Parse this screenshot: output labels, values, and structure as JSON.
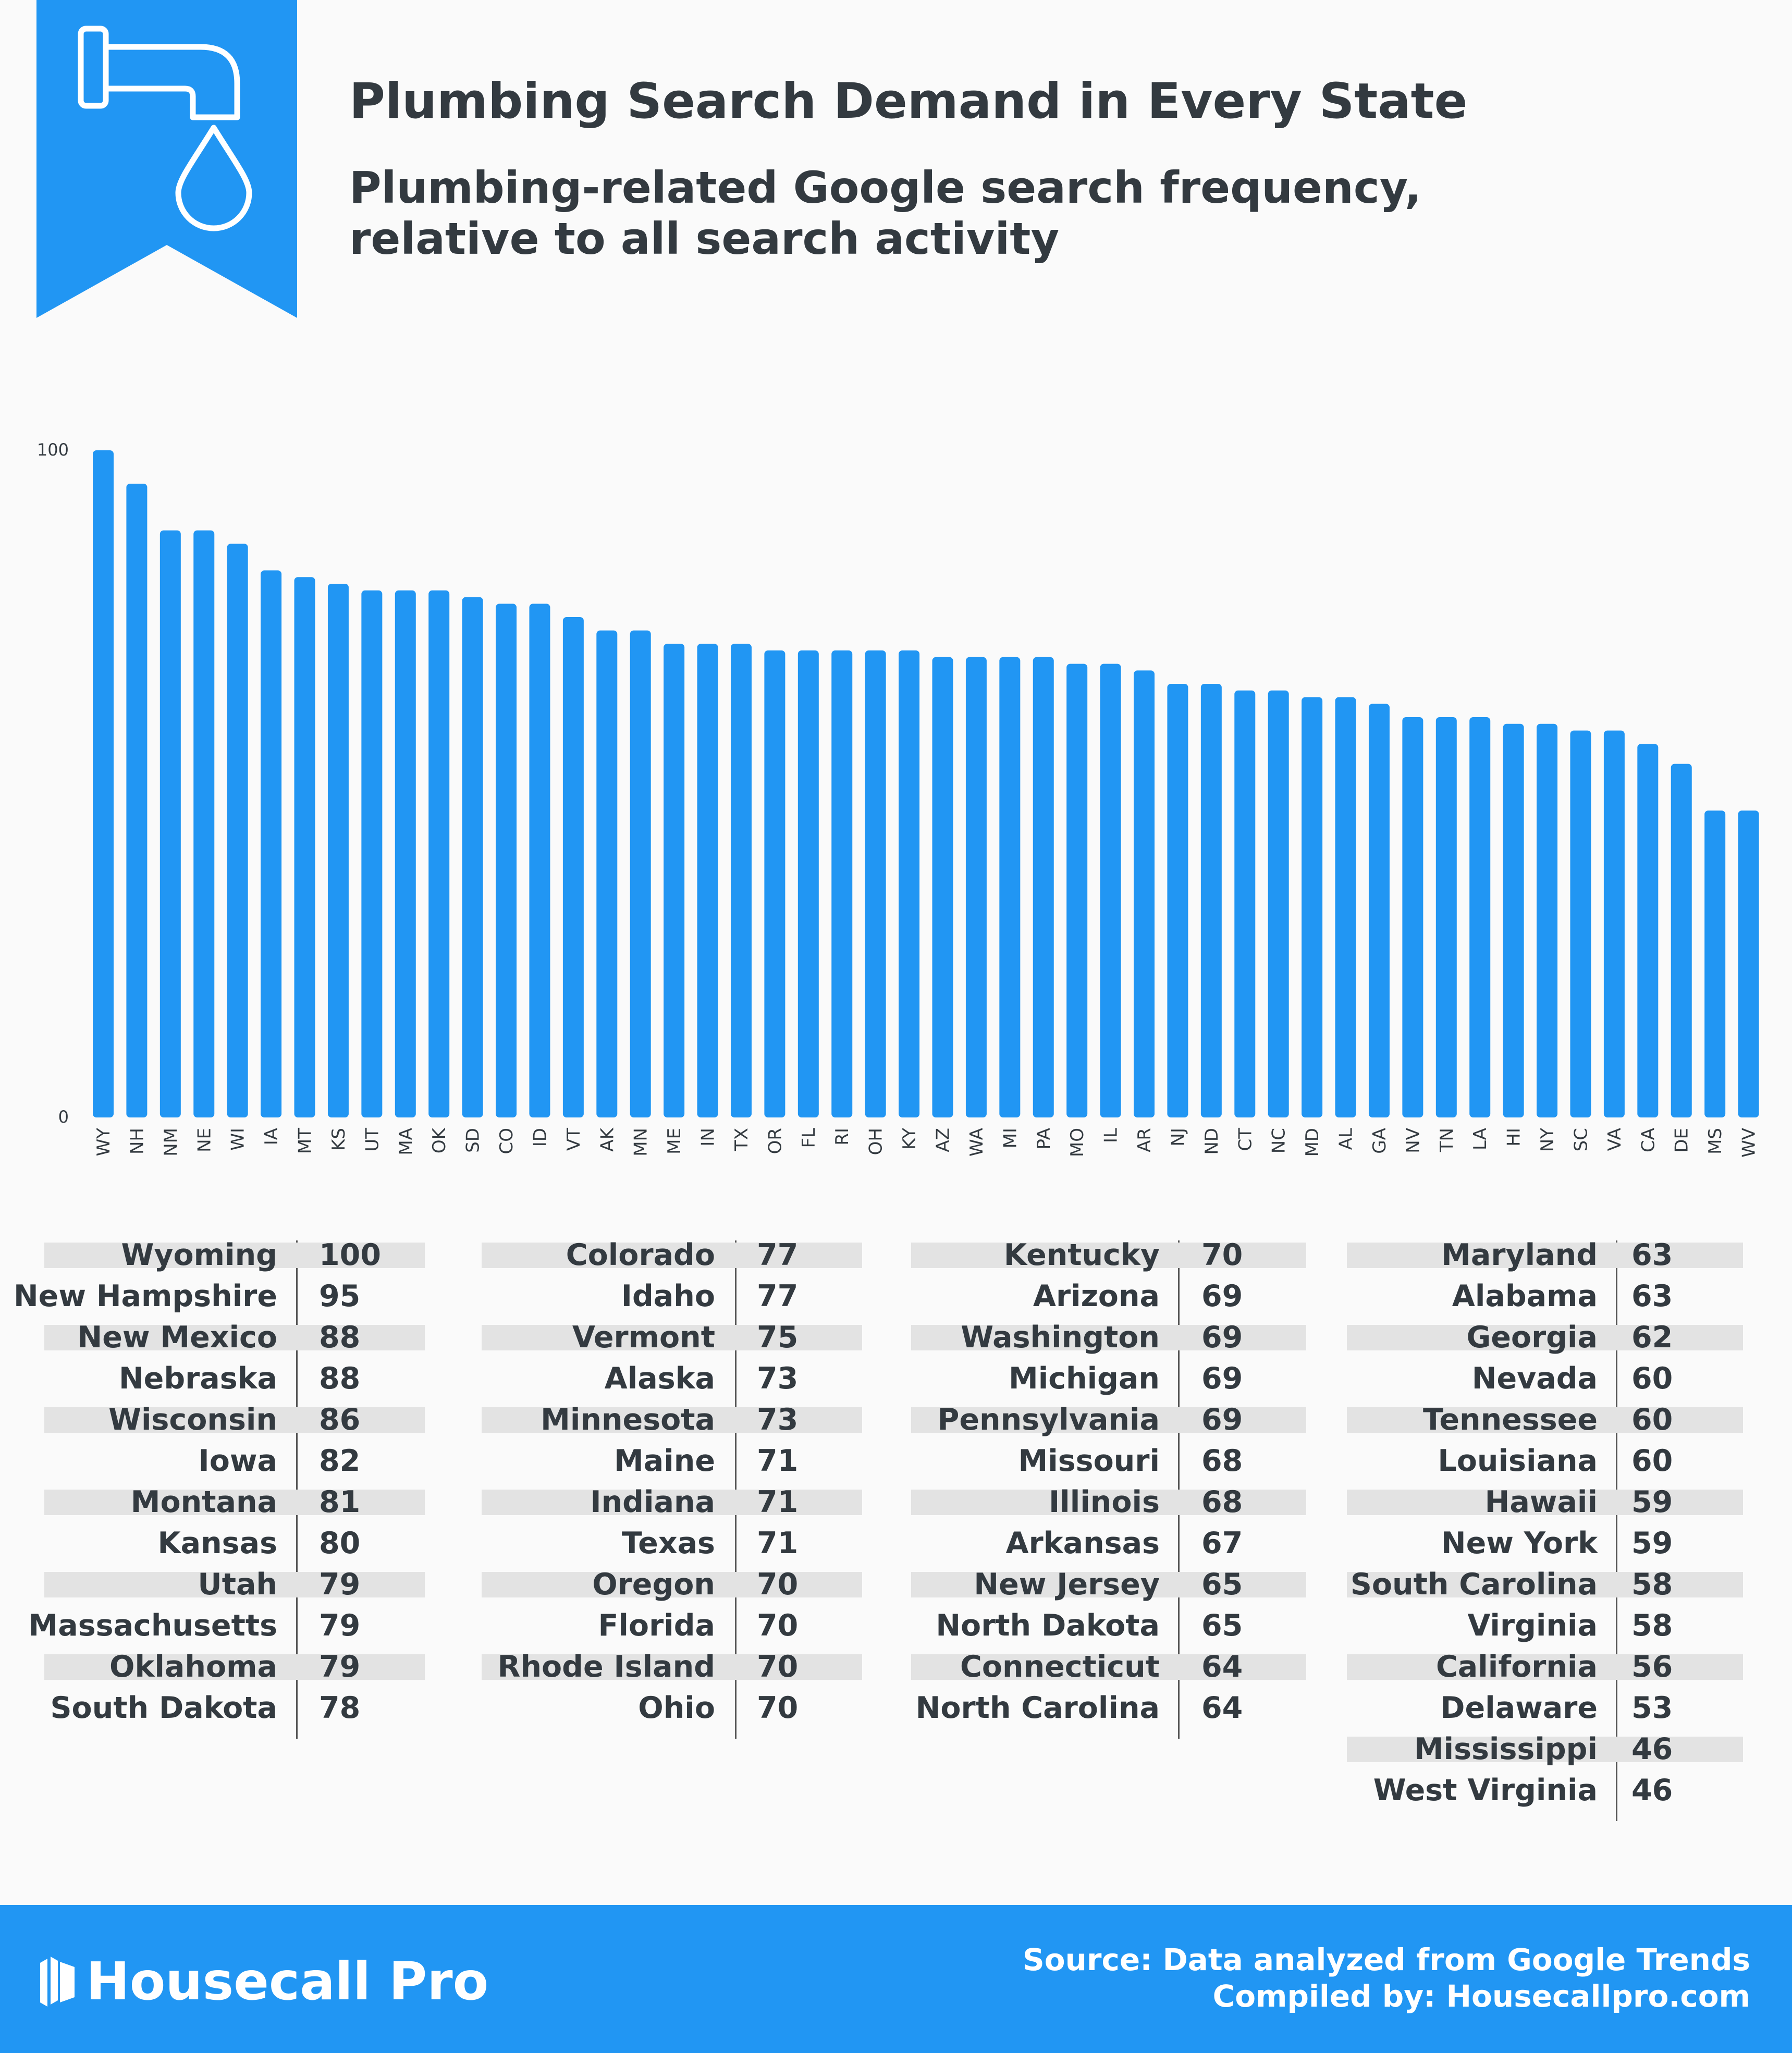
{
  "header": {
    "title": "Plumbing Search Demand in Every State",
    "subtitle": "Plumbing-related Google search frequency, relative to all search activity",
    "icon": "faucet-icon"
  },
  "colors": {
    "accent": "#2196f3",
    "text": "#333a40",
    "shade": "#e3e3e3"
  },
  "chart_data": {
    "type": "bar",
    "title": "Plumbing Search Demand in Every State",
    "subtitle": "Plumbing-related Google search frequency, relative to all search activity",
    "xlabel": "",
    "ylabel": "",
    "ylim": [
      0,
      100
    ],
    "yticks": [
      0,
      100
    ],
    "grid": false,
    "categories": [
      "WY",
      "NH",
      "NM",
      "NE",
      "WI",
      "IA",
      "MT",
      "KS",
      "UT",
      "MA",
      "OK",
      "SD",
      "CO",
      "ID",
      "VT",
      "AK",
      "MN",
      "ME",
      "IN",
      "TX",
      "OR",
      "FL",
      "RI",
      "OH",
      "KY",
      "AZ",
      "WA",
      "MI",
      "PA",
      "MO",
      "IL",
      "AR",
      "NJ",
      "ND",
      "CT",
      "NC",
      "MD",
      "AL",
      "GA",
      "NV",
      "TN",
      "LA",
      "HI",
      "NY",
      "SC",
      "VA",
      "CA",
      "DE",
      "MS",
      "WV"
    ],
    "values": [
      100,
      95,
      88,
      88,
      86,
      82,
      81,
      80,
      79,
      79,
      79,
      78,
      77,
      77,
      75,
      73,
      73,
      71,
      71,
      71,
      70,
      70,
      70,
      70,
      70,
      69,
      69,
      69,
      69,
      68,
      68,
      67,
      65,
      65,
      64,
      64,
      63,
      63,
      62,
      60,
      60,
      60,
      59,
      59,
      58,
      58,
      56,
      53,
      46,
      46
    ]
  },
  "table": [
    [
      {
        "name": "Wyoming",
        "value": "100"
      },
      {
        "name": "New Hampshire",
        "value": "95"
      },
      {
        "name": "New Mexico",
        "value": "88"
      },
      {
        "name": "Nebraska",
        "value": "88"
      },
      {
        "name": "Wisconsin",
        "value": "86"
      },
      {
        "name": "Iowa",
        "value": "82"
      },
      {
        "name": "Montana",
        "value": "81"
      },
      {
        "name": "Kansas",
        "value": "80"
      },
      {
        "name": "Utah",
        "value": "79"
      },
      {
        "name": "Massachusetts",
        "value": "79"
      },
      {
        "name": "Oklahoma",
        "value": "79"
      },
      {
        "name": "South Dakota",
        "value": "78"
      }
    ],
    [
      {
        "name": "Colorado",
        "value": "77"
      },
      {
        "name": "Idaho",
        "value": "77"
      },
      {
        "name": "Vermont",
        "value": "75"
      },
      {
        "name": "Alaska",
        "value": "73"
      },
      {
        "name": "Minnesota",
        "value": "73"
      },
      {
        "name": "Maine",
        "value": "71"
      },
      {
        "name": "Indiana",
        "value": "71"
      },
      {
        "name": "Texas",
        "value": "71"
      },
      {
        "name": "Oregon",
        "value": "70"
      },
      {
        "name": "Florida",
        "value": "70"
      },
      {
        "name": "Rhode Island",
        "value": "70"
      },
      {
        "name": "Ohio",
        "value": "70"
      }
    ],
    [
      {
        "name": "Kentucky",
        "value": "70"
      },
      {
        "name": "Arizona",
        "value": "69"
      },
      {
        "name": "Washington",
        "value": "69"
      },
      {
        "name": "Michigan",
        "value": "69"
      },
      {
        "name": "Pennsylvania",
        "value": "69"
      },
      {
        "name": "Missouri",
        "value": "68"
      },
      {
        "name": "Illinois",
        "value": "68"
      },
      {
        "name": "Arkansas",
        "value": "67"
      },
      {
        "name": "New Jersey",
        "value": "65"
      },
      {
        "name": "North Dakota",
        "value": "65"
      },
      {
        "name": "Connecticut",
        "value": "64"
      },
      {
        "name": "North Carolina",
        "value": "64"
      }
    ],
    [
      {
        "name": "Maryland",
        "value": "63"
      },
      {
        "name": "Alabama",
        "value": "63"
      },
      {
        "name": "Georgia",
        "value": "62"
      },
      {
        "name": "Nevada",
        "value": "60"
      },
      {
        "name": "Tennessee",
        "value": "60"
      },
      {
        "name": "Louisiana",
        "value": "60"
      },
      {
        "name": "Hawaii",
        "value": "59"
      },
      {
        "name": "New York",
        "value": "59"
      },
      {
        "name": "South Carolina",
        "value": "58"
      },
      {
        "name": "Virginia",
        "value": "58"
      },
      {
        "name": "California",
        "value": "56"
      },
      {
        "name": "Delaware",
        "value": "53"
      },
      {
        "name": "Mississippi",
        "value": "46"
      },
      {
        "name": "West Virginia",
        "value": "46"
      }
    ]
  ],
  "footer": {
    "brand": "Housecall Pro",
    "brand_icon": "housecall-logo-icon",
    "source_line1": "Source: Data analyzed from Google Trends",
    "source_line2": "Compiled by: Housecallpro.com"
  }
}
